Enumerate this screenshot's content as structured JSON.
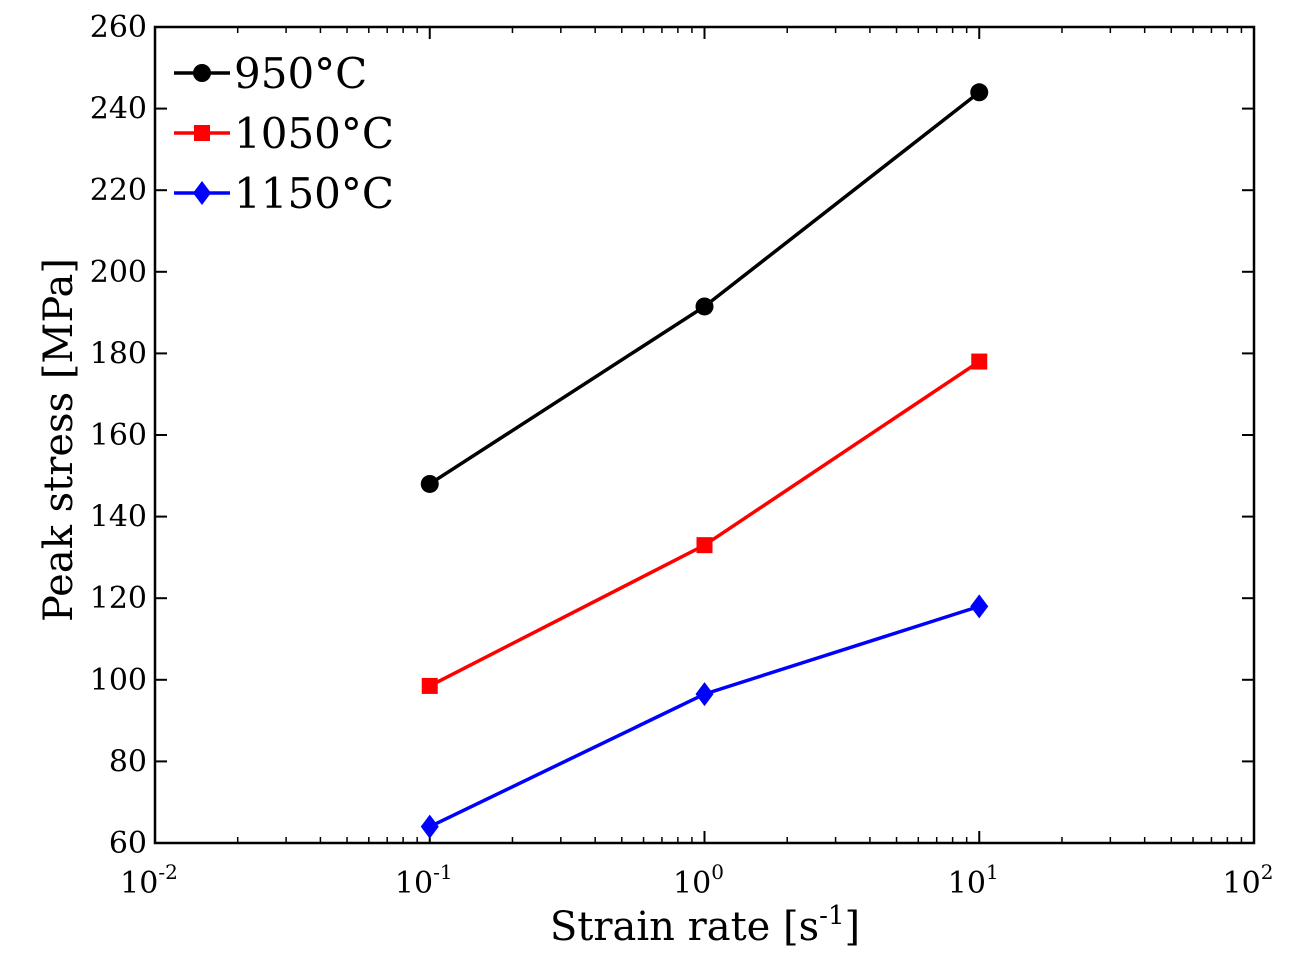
{
  "chart_data": {
    "type": "line",
    "title": "",
    "xlabel": "Strain rate [s",
    "xlabel_sup": "-1",
    "xlabel_suffix": "]",
    "ylabel": "Peak stress [MPa]",
    "xscale": "log",
    "xlim": [
      0.01,
      100
    ],
    "ylim": [
      60,
      260
    ],
    "x_ticks": [
      {
        "base": "10",
        "exp": "-2",
        "value": 0.01
      },
      {
        "base": "10",
        "exp": "-1",
        "value": 0.1
      },
      {
        "base": "10",
        "exp": "0",
        "value": 1
      },
      {
        "base": "10",
        "exp": "1",
        "value": 10
      },
      {
        "base": "10",
        "exp": "2",
        "value": 100
      }
    ],
    "y_ticks": [
      "60",
      "80",
      "100",
      "120",
      "140",
      "160",
      "180",
      "200",
      "220",
      "240",
      "260"
    ],
    "x": [
      0.1,
      1,
      10
    ],
    "legend_position": "top-left",
    "series": [
      {
        "name": "950°C",
        "color": "#000000",
        "marker": "circle",
        "values": [
          148,
          191.5,
          244
        ]
      },
      {
        "name": "1050°C",
        "color": "#ff0000",
        "marker": "square",
        "values": [
          98.5,
          133,
          178
        ]
      },
      {
        "name": "1150°C",
        "color": "#0000ff",
        "marker": "diamond",
        "values": [
          64,
          96.5,
          118
        ]
      }
    ]
  }
}
